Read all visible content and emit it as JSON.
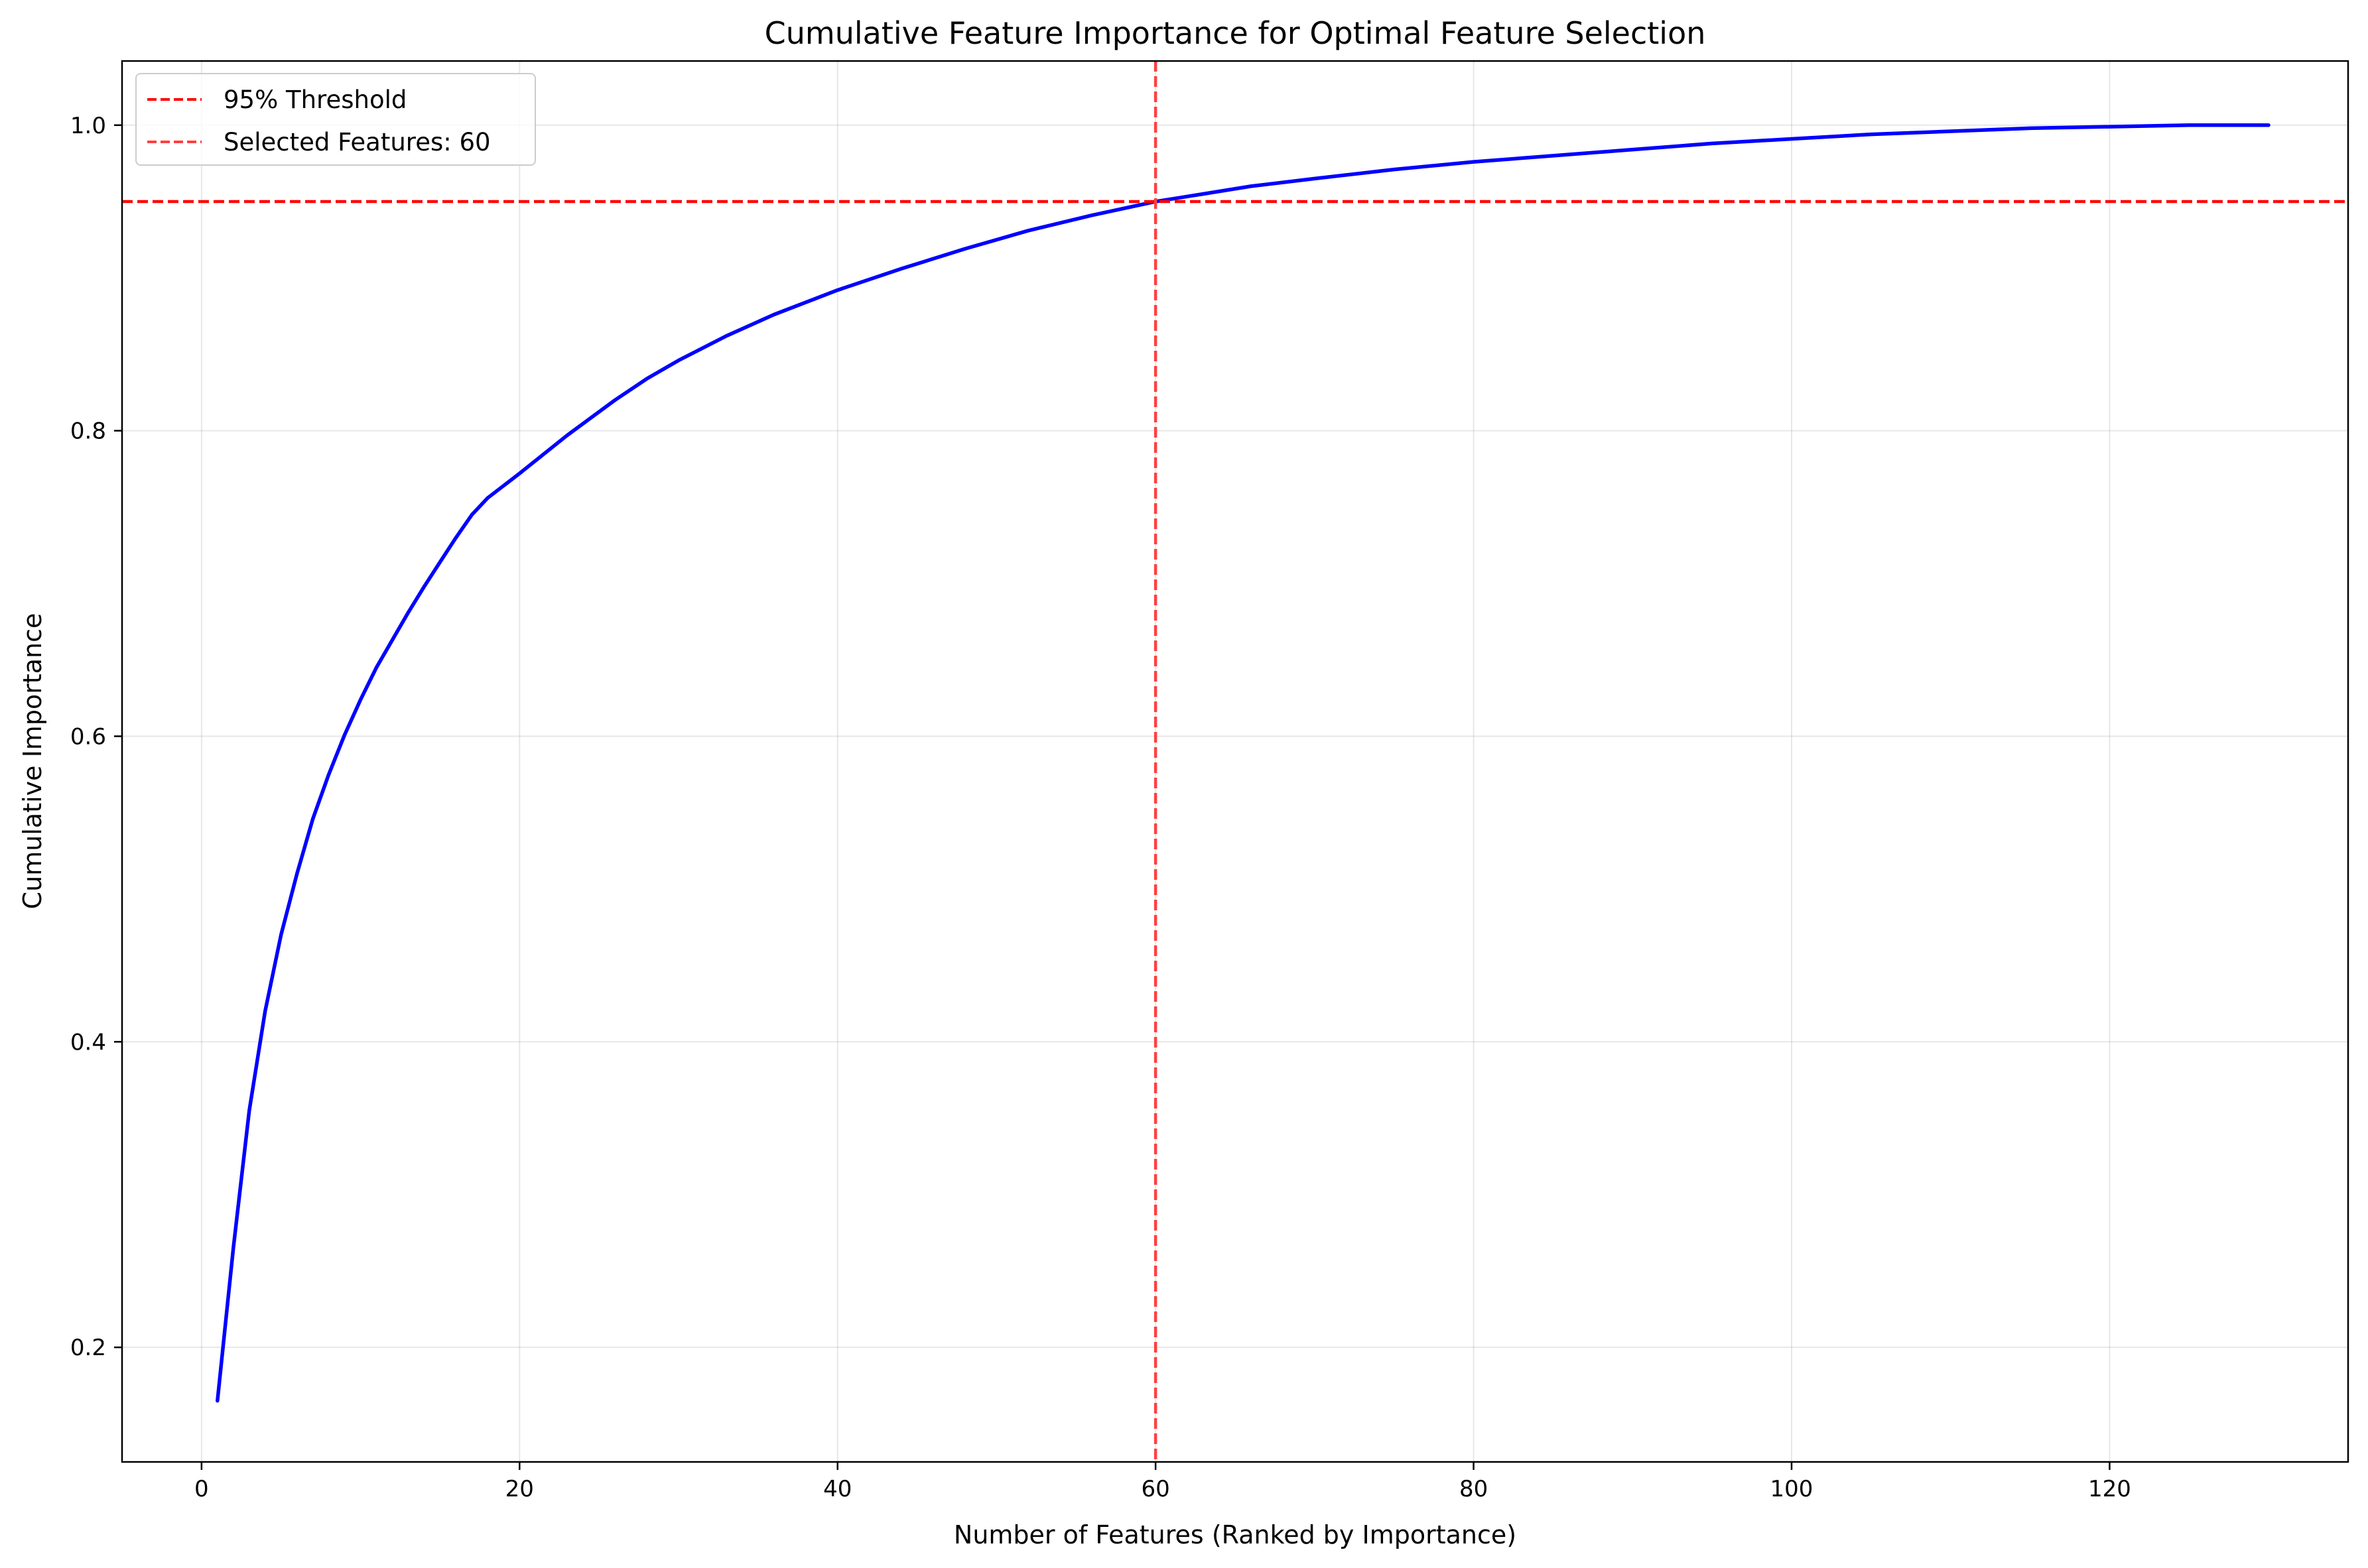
{
  "chart_data": {
    "type": "line",
    "title": "Cumulative Feature Importance for Optimal Feature Selection",
    "xlabel": "Number of Features (Ranked by Importance)",
    "ylabel": "Cumulative Importance",
    "xlim": [
      -5,
      135
    ],
    "ylim": [
      0.125,
      1.042
    ],
    "xticks": [
      0,
      20,
      40,
      60,
      80,
      100,
      120
    ],
    "yticks": [
      0.2,
      0.4,
      0.6,
      0.8,
      1.0
    ],
    "xtick_labels": [
      "0",
      "20",
      "40",
      "60",
      "80",
      "100",
      "120"
    ],
    "ytick_labels": [
      "0.2",
      "0.4",
      "0.6",
      "0.8",
      "1.0"
    ],
    "grid": true,
    "legend_position": "upper-left",
    "series": [
      {
        "color": "#0000ff",
        "style": "solid",
        "x": [
          1,
          2,
          3,
          4,
          5,
          6,
          7,
          8,
          9,
          10,
          11,
          12,
          13,
          14,
          15,
          16,
          17,
          18,
          20,
          23,
          26,
          28,
          30,
          33,
          36,
          40,
          44,
          48,
          52,
          56,
          60,
          63,
          66,
          70,
          75,
          80,
          85,
          90,
          95,
          100,
          105,
          110,
          115,
          120,
          125,
          130
        ],
        "y": [
          0.165,
          0.265,
          0.355,
          0.42,
          0.47,
          0.51,
          0.546,
          0.575,
          0.601,
          0.624,
          0.645,
          0.663,
          0.681,
          0.698,
          0.714,
          0.73,
          0.745,
          0.756,
          0.772,
          0.797,
          0.82,
          0.834,
          0.846,
          0.862,
          0.876,
          0.892,
          0.906,
          0.919,
          0.931,
          0.941,
          0.95,
          0.955,
          0.96,
          0.965,
          0.971,
          0.976,
          0.98,
          0.984,
          0.988,
          0.991,
          0.994,
          0.996,
          0.998,
          0.999,
          1.0,
          1.0
        ]
      }
    ],
    "reference_lines": [
      {
        "orientation": "horizontal",
        "value": 0.95,
        "color": "#ff0000",
        "style": "dashed",
        "label": "95% Threshold"
      },
      {
        "orientation": "vertical",
        "value": 60,
        "color": "#ff4040",
        "style": "dashed",
        "label": "Selected Features: 60"
      }
    ],
    "legend": [
      "95% Threshold",
      "Selected Features: 60"
    ]
  }
}
